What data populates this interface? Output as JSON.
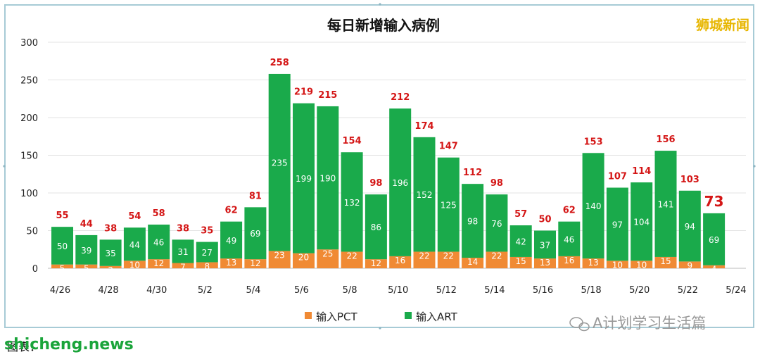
{
  "brand": "狮城新闻",
  "watermark": "A计划学习生活篇",
  "watermark_icon": "wechat-icon",
  "caption": "图表：",
  "site": "shicheng.news",
  "colors": {
    "pct": "#f08a34",
    "art": "#1aaa4b",
    "total": "#d41616"
  },
  "chart_data": {
    "type": "bar",
    "stacked": true,
    "title": "每日新增输入病例",
    "categories": [
      "4/26",
      "4/27",
      "4/28",
      "4/29",
      "4/30",
      "5/1",
      "5/2",
      "5/3",
      "5/4",
      "5/5",
      "5/6",
      "5/7",
      "5/8",
      "5/9",
      "5/10",
      "5/11",
      "5/12",
      "5/13",
      "5/14",
      "5/15",
      "5/16",
      "5/17",
      "5/18",
      "5/19",
      "5/20",
      "5/21",
      "5/22",
      "5/23"
    ],
    "xtick_labels": [
      "4/26",
      "4/28",
      "4/30",
      "5/2",
      "5/4",
      "5/6",
      "5/8",
      "5/10",
      "5/12",
      "5/14",
      "5/16",
      "5/18",
      "5/20",
      "5/22",
      "5/24"
    ],
    "series": [
      {
        "name": "输入PCT",
        "values": [
          5,
          5,
          3,
          10,
          12,
          7,
          8,
          13,
          12,
          23,
          20,
          25,
          22,
          12,
          16,
          22,
          22,
          14,
          22,
          15,
          13,
          16,
          13,
          10,
          10,
          15,
          9,
          4
        ]
      },
      {
        "name": "输入ART",
        "values": [
          50,
          39,
          35,
          44,
          46,
          31,
          27,
          49,
          69,
          235,
          199,
          190,
          132,
          86,
          196,
          152,
          125,
          98,
          76,
          42,
          37,
          46,
          140,
          97,
          104,
          141,
          94,
          69
        ]
      }
    ],
    "totals": [
      55,
      44,
      38,
      54,
      58,
      38,
      35,
      62,
      81,
      258,
      219,
      215,
      154,
      98,
      212,
      174,
      147,
      112,
      98,
      57,
      50,
      62,
      153,
      107,
      114,
      156,
      103,
      73
    ],
    "ylim": [
      0,
      300
    ],
    "yticks": [
      0,
      50,
      100,
      150,
      200,
      250,
      300
    ],
    "grid": true,
    "legend": "bottom"
  }
}
